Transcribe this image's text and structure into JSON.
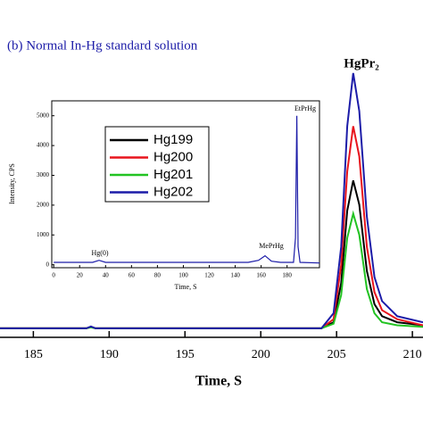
{
  "chart_data": [
    {
      "type": "line",
      "title": "(b) Normal In-Hg standard solution",
      "xlabel": "Time, S",
      "annotations": [
        "HgPr₂"
      ],
      "xlim": [
        182.8,
        210.7
      ],
      "ylim": [
        0,
        100
      ],
      "xticks": [
        185,
        190,
        195,
        200,
        205,
        210
      ],
      "x": [
        182.8,
        188.5,
        188.8,
        189.1,
        204.0,
        204.8,
        205.3,
        205.7,
        206.1,
        206.5,
        207.0,
        207.5,
        208.0,
        209.0,
        210.7
      ],
      "series": [
        {
          "name": "Hg199",
          "color": "#000000",
          "values": [
            3,
            3,
            3.4,
            3,
            3,
            5,
            18,
            42,
            52,
            44,
            22,
            11,
            7,
            5,
            4
          ]
        },
        {
          "name": "Hg200",
          "color": "#e8141c",
          "values": [
            3,
            3,
            3.5,
            3,
            3,
            6,
            24,
            55,
            70,
            60,
            30,
            15,
            9,
            6,
            4
          ]
        },
        {
          "name": "Hg201",
          "color": "#22c322",
          "values": [
            3,
            3,
            3.3,
            3,
            3,
            4.5,
            14,
            33,
            41,
            34,
            16,
            8,
            5,
            4,
            3.5
          ]
        },
        {
          "name": "Hg202",
          "color": "#1c1ca8",
          "values": [
            3,
            3,
            3.6,
            3,
            3,
            8,
            30,
            70,
            87.6,
            75,
            40,
            20,
            12,
            7,
            5
          ]
        }
      ]
    },
    {
      "type": "line",
      "xlabel": "Time, S",
      "ylabel": "Intensity, CPS",
      "annotations": [
        "Hg(0)",
        "MePrHg",
        "EtPrHg"
      ],
      "xlim": [
        -1.5,
        205
      ],
      "ylim": [
        -100,
        5500
      ],
      "xticks": [
        0,
        20,
        40,
        60,
        80,
        100,
        120,
        140,
        160,
        180
      ],
      "yticks": [
        0,
        1000,
        2000,
        3000,
        4000,
        5000
      ],
      "x": [
        0,
        30,
        35,
        40,
        150,
        158,
        163,
        168,
        175,
        185,
        186.5,
        187.5,
        188.5,
        190,
        205
      ],
      "series": [
        {
          "color": "#1c1ca8",
          "values": [
            80,
            80,
            150,
            80,
            80,
            150,
            300,
            120,
            80,
            80,
            900,
            5000,
            600,
            80,
            60
          ]
        }
      ]
    }
  ]
}
